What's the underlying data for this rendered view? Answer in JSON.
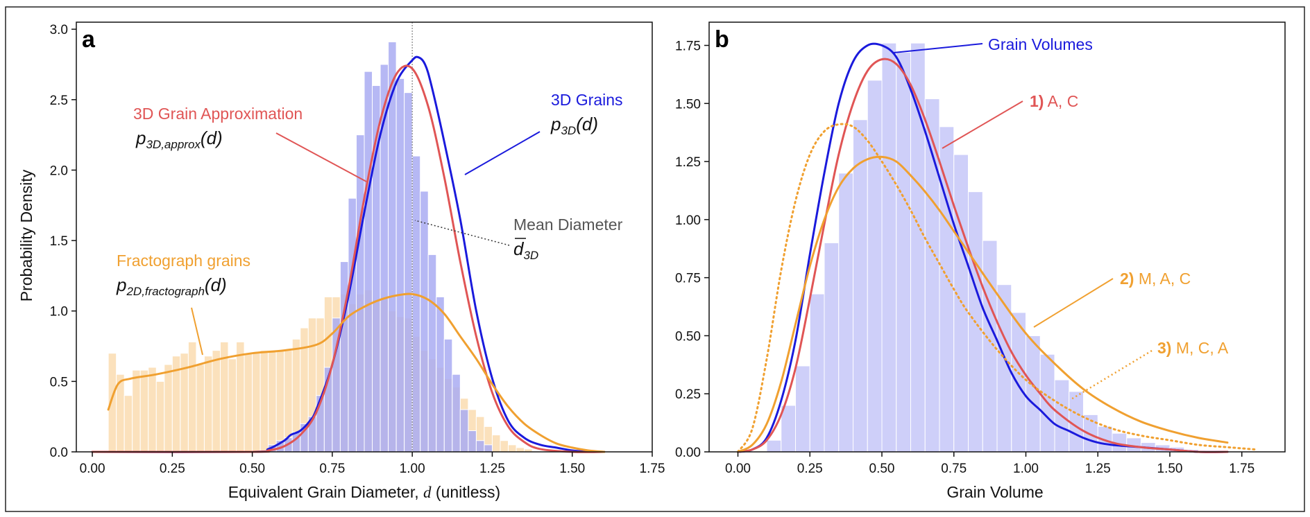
{
  "chart_data": [
    {
      "type": "bar",
      "panel_letter": "a",
      "xlabel_main": "Equivalent Grain Diameter, ",
      "xlabel_var": "d",
      "xlabel_unit": " (unitless)",
      "ylabel": "Probability Density",
      "xlim": [
        -0.05,
        1.75
      ],
      "ylim": [
        0,
        3.05
      ],
      "xticks": [
        "0.00",
        "0.25",
        "0.50",
        "0.75",
        "1.00",
        "1.25",
        "1.50",
        "1.75"
      ],
      "yticks": [
        "0.0",
        "0.5",
        "1.0",
        "1.5",
        "2.0",
        "2.5",
        "3.0"
      ],
      "mean_line_x": 1.0,
      "histograms": [
        {
          "name": "3D grains histogram",
          "color": "#a9acf2",
          "bin_width": 0.025,
          "bin_start": 0.55,
          "values": [
            0.05,
            0.08,
            0.1,
            0.14,
            0.2,
            0.25,
            0.4,
            0.6,
            0.95,
            1.35,
            1.8,
            2.25,
            2.7,
            2.6,
            2.75,
            2.91,
            2.65,
            2.55,
            2.1,
            1.85,
            1.4,
            1.1,
            0.8,
            0.55,
            0.3,
            0.15,
            0.08,
            0.05
          ]
        },
        {
          "name": "Fractograph grains histogram",
          "color": "#fad7a6",
          "bin_width": 0.025,
          "bin_start": 0.05,
          "values": [
            0.7,
            0.55,
            0.4,
            0.58,
            0.58,
            0.6,
            0.5,
            0.62,
            0.68,
            0.7,
            0.78,
            0.62,
            0.68,
            0.72,
            0.78,
            0.66,
            0.78,
            0.7,
            0.7,
            0.72,
            0.72,
            0.72,
            0.72,
            0.8,
            0.88,
            0.95,
            0.95,
            1.1,
            1.1,
            1.12,
            1.05,
            1.12,
            1.15,
            1.08,
            1.1,
            1.0,
            0.96,
            0.95,
            0.82,
            0.72,
            0.66,
            0.6,
            0.52,
            0.46,
            0.38,
            0.3,
            0.25,
            0.18,
            0.12,
            0.08,
            0.05,
            0.03,
            0.02
          ]
        }
      ],
      "series": [
        {
          "name": "p3D(d)",
          "color": "#1a1adc",
          "style": "solid",
          "x": [
            0.0,
            0.5,
            0.55,
            0.6,
            0.62,
            0.65,
            0.68,
            0.7,
            0.75,
            0.8,
            0.85,
            0.9,
            0.95,
            1.0,
            1.02,
            1.04,
            1.06,
            1.1,
            1.15,
            1.2,
            1.25,
            1.3,
            1.35,
            1.4,
            1.45,
            1.5,
            1.55
          ],
          "y": [
            0.0,
            0.0,
            0.02,
            0.08,
            0.12,
            0.15,
            0.22,
            0.3,
            0.62,
            1.1,
            1.7,
            2.25,
            2.62,
            2.78,
            2.8,
            2.75,
            2.6,
            2.2,
            1.65,
            1.0,
            0.52,
            0.22,
            0.1,
            0.05,
            0.03,
            0.01,
            0.0
          ]
        },
        {
          "name": "p3D,approx(d)",
          "color": "#e05555",
          "style": "solid",
          "x": [
            0.0,
            0.5,
            0.55,
            0.6,
            0.65,
            0.7,
            0.75,
            0.8,
            0.85,
            0.9,
            0.95,
            1.0,
            1.05,
            1.1,
            1.15,
            1.2,
            1.25,
            1.3,
            1.35,
            1.4,
            1.5,
            1.6
          ],
          "y": [
            0.0,
            0.0,
            0.01,
            0.04,
            0.12,
            0.28,
            0.62,
            1.15,
            1.8,
            2.35,
            2.68,
            2.72,
            2.45,
            1.95,
            1.35,
            0.82,
            0.42,
            0.18,
            0.07,
            0.02,
            0.0,
            0.0
          ]
        },
        {
          "name": "p2D,fractograph(d)",
          "color": "#f0a030",
          "style": "solid",
          "x": [
            0.05,
            0.08,
            0.12,
            0.2,
            0.3,
            0.4,
            0.5,
            0.6,
            0.7,
            0.75,
            0.8,
            0.85,
            0.9,
            0.95,
            1.0,
            1.05,
            1.1,
            1.15,
            1.2,
            1.25,
            1.3,
            1.35,
            1.4,
            1.45,
            1.5,
            1.55,
            1.6
          ],
          "y": [
            0.3,
            0.48,
            0.52,
            0.55,
            0.6,
            0.66,
            0.7,
            0.72,
            0.76,
            0.84,
            0.96,
            1.03,
            1.08,
            1.11,
            1.12,
            1.08,
            0.98,
            0.82,
            0.66,
            0.48,
            0.32,
            0.2,
            0.12,
            0.06,
            0.03,
            0.01,
            0.0
          ]
        }
      ],
      "annotations": {
        "a3d_label": "3D Grains",
        "a3d_math_base": "p",
        "a3d_math_sub": "3D",
        "a3d_math_arg": "(d)",
        "approx_label": "3D Grain Approximation",
        "approx_math_base": "p",
        "approx_math_sub": "3D,approx",
        "approx_math_arg": "(d)",
        "frac_label": "Fractograph grains",
        "frac_math_base": "p",
        "frac_math_sub": "2D,fractograph",
        "frac_math_arg": "(d)",
        "mean_label": "Mean Diameter",
        "mean_math_base": "d",
        "mean_math_sub": "3D"
      }
    },
    {
      "type": "bar",
      "panel_letter": "b",
      "xlabel": "Grain Volume",
      "ylabel": "",
      "xlim": [
        -0.1,
        1.9
      ],
      "ylim": [
        0,
        1.85
      ],
      "xticks": [
        "0.00",
        "0.25",
        "0.50",
        "0.75",
        "1.00",
        "1.25",
        "1.50",
        "1.75"
      ],
      "yticks": [
        "0.00",
        "0.25",
        "0.50",
        "0.75",
        "1.00",
        "1.25",
        "1.50",
        "1.75"
      ],
      "histograms": [
        {
          "name": "Grain volumes histogram",
          "color": "#c5c7f8",
          "bin_width": 0.05,
          "bin_start": 0.1,
          "values": [
            0.05,
            0.2,
            0.37,
            0.68,
            0.9,
            1.2,
            1.43,
            1.6,
            1.76,
            1.72,
            1.76,
            1.52,
            1.4,
            1.28,
            1.12,
            0.91,
            0.72,
            0.6,
            0.5,
            0.42,
            0.31,
            0.26,
            0.16,
            0.11,
            0.08,
            0.06,
            0.04,
            0.03,
            0.02,
            0.01
          ]
        }
      ],
      "series": [
        {
          "name": "Grain Volumes",
          "color": "#1a1adc",
          "style": "solid",
          "x": [
            0.0,
            0.05,
            0.1,
            0.15,
            0.2,
            0.25,
            0.3,
            0.35,
            0.4,
            0.45,
            0.5,
            0.55,
            0.6,
            0.65,
            0.7,
            0.75,
            0.8,
            0.85,
            0.9,
            0.95,
            1.0,
            1.05,
            1.1,
            1.15,
            1.2,
            1.25,
            1.3,
            1.4,
            1.5,
            1.6,
            1.7
          ],
          "y": [
            0.0,
            0.01,
            0.06,
            0.22,
            0.48,
            0.85,
            1.2,
            1.5,
            1.68,
            1.75,
            1.75,
            1.7,
            1.56,
            1.38,
            1.18,
            0.98,
            0.8,
            0.62,
            0.48,
            0.34,
            0.24,
            0.18,
            0.12,
            0.09,
            0.06,
            0.04,
            0.03,
            0.02,
            0.01,
            0.0,
            0.0
          ]
        },
        {
          "name": "1) A, C",
          "color": "#e05555",
          "style": "solid",
          "x": [
            0.0,
            0.05,
            0.1,
            0.15,
            0.2,
            0.25,
            0.3,
            0.35,
            0.4,
            0.45,
            0.5,
            0.55,
            0.6,
            0.65,
            0.7,
            0.75,
            0.8,
            0.85,
            0.9,
            0.95,
            1.0,
            1.05,
            1.1,
            1.2,
            1.3,
            1.4,
            1.5,
            1.6,
            1.7
          ],
          "y": [
            0.0,
            0.01,
            0.05,
            0.16,
            0.36,
            0.66,
            0.98,
            1.28,
            1.5,
            1.64,
            1.69,
            1.67,
            1.58,
            1.43,
            1.25,
            1.06,
            0.88,
            0.71,
            0.56,
            0.43,
            0.33,
            0.25,
            0.18,
            0.09,
            0.04,
            0.02,
            0.01,
            0.0,
            0.0
          ]
        },
        {
          "name": "2) M, A, C",
          "color": "#f0a030",
          "style": "solid",
          "x": [
            0.0,
            0.05,
            0.1,
            0.15,
            0.2,
            0.25,
            0.3,
            0.35,
            0.4,
            0.45,
            0.5,
            0.55,
            0.6,
            0.65,
            0.7,
            0.75,
            0.8,
            0.9,
            1.0,
            1.1,
            1.2,
            1.3,
            1.4,
            1.5,
            1.6,
            1.7
          ],
          "y": [
            0.0,
            0.03,
            0.12,
            0.3,
            0.55,
            0.8,
            1.0,
            1.14,
            1.22,
            1.26,
            1.27,
            1.25,
            1.19,
            1.12,
            1.04,
            0.95,
            0.86,
            0.68,
            0.51,
            0.38,
            0.27,
            0.19,
            0.13,
            0.09,
            0.06,
            0.04
          ]
        },
        {
          "name": "3) M, C, A",
          "color": "#f0a030",
          "style": "dotted",
          "x": [
            0.0,
            0.05,
            0.1,
            0.15,
            0.2,
            0.25,
            0.3,
            0.35,
            0.4,
            0.45,
            0.5,
            0.55,
            0.6,
            0.65,
            0.7,
            0.75,
            0.8,
            0.9,
            1.0,
            1.1,
            1.2,
            1.3,
            1.4,
            1.5,
            1.6,
            1.7,
            1.8
          ],
          "y": [
            0.0,
            0.1,
            0.4,
            0.78,
            1.08,
            1.28,
            1.38,
            1.41,
            1.4,
            1.34,
            1.25,
            1.15,
            1.04,
            0.92,
            0.81,
            0.7,
            0.6,
            0.44,
            0.31,
            0.22,
            0.15,
            0.1,
            0.07,
            0.05,
            0.03,
            0.02,
            0.01
          ]
        }
      ],
      "annotations": {
        "gv_label": "Grain Volumes",
        "l1_num": "1)",
        "l1_text": " A, C",
        "l2_num": "2)",
        "l2_text": " M, A, C",
        "l3_num": "3)",
        "l3_text": " M, C, A"
      }
    }
  ]
}
